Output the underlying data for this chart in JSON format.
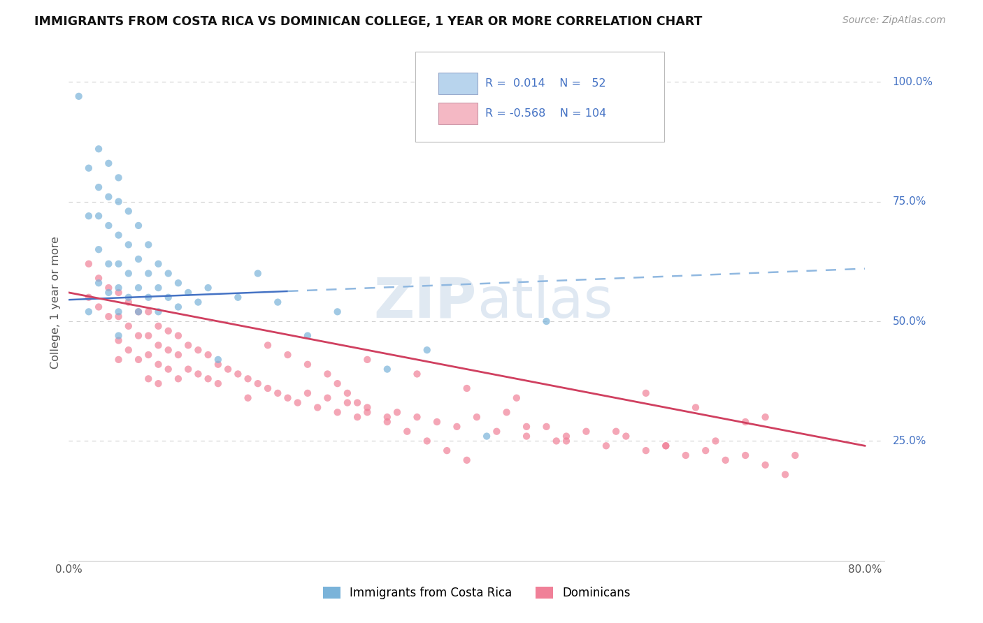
{
  "title": "IMMIGRANTS FROM COSTA RICA VS DOMINICAN COLLEGE, 1 YEAR OR MORE CORRELATION CHART",
  "source_text": "Source: ZipAtlas.com",
  "ylabel": "College, 1 year or more",
  "xlim": [
    0.0,
    0.82
  ],
  "ylim": [
    0.0,
    1.08
  ],
  "x_tick_labels": [
    "0.0%",
    "80.0%"
  ],
  "x_tick_positions": [
    0.0,
    0.8
  ],
  "y_tick_labels": [
    "25.0%",
    "50.0%",
    "75.0%",
    "100.0%"
  ],
  "y_tick_positions": [
    0.25,
    0.5,
    0.75,
    1.0
  ],
  "legend_label1": "Immigrants from Costa Rica",
  "legend_label2": "Dominicans",
  "blue_dot_color": "#7ab3d9",
  "blue_light_fill": "#b8d4ed",
  "pink_dot_color": "#f08098",
  "pink_light_fill": "#f4b8c4",
  "trendline_blue_solid": "#4472c4",
  "trendline_blue_dash": "#90b8e0",
  "trendline_pink": "#d04060",
  "text_color_blue": "#4472c4",
  "grid_color": "#d0d0d0",
  "watermark_color": "#dce8f0",
  "blue_scatter_x": [
    0.01,
    0.02,
    0.02,
    0.02,
    0.03,
    0.03,
    0.03,
    0.03,
    0.03,
    0.04,
    0.04,
    0.04,
    0.04,
    0.04,
    0.05,
    0.05,
    0.05,
    0.05,
    0.05,
    0.05,
    0.05,
    0.06,
    0.06,
    0.06,
    0.06,
    0.07,
    0.07,
    0.07,
    0.07,
    0.08,
    0.08,
    0.08,
    0.09,
    0.09,
    0.09,
    0.1,
    0.1,
    0.11,
    0.11,
    0.12,
    0.13,
    0.14,
    0.15,
    0.17,
    0.19,
    0.21,
    0.24,
    0.27,
    0.32,
    0.36,
    0.42,
    0.48
  ],
  "blue_scatter_y": [
    0.97,
    0.82,
    0.72,
    0.52,
    0.86,
    0.78,
    0.72,
    0.65,
    0.58,
    0.83,
    0.76,
    0.7,
    0.62,
    0.56,
    0.8,
    0.75,
    0.68,
    0.62,
    0.57,
    0.52,
    0.47,
    0.73,
    0.66,
    0.6,
    0.55,
    0.7,
    0.63,
    0.57,
    0.52,
    0.66,
    0.6,
    0.55,
    0.62,
    0.57,
    0.52,
    0.6,
    0.55,
    0.58,
    0.53,
    0.56,
    0.54,
    0.57,
    0.42,
    0.55,
    0.6,
    0.54,
    0.47,
    0.52,
    0.4,
    0.44,
    0.26,
    0.5
  ],
  "pink_scatter_x": [
    0.02,
    0.02,
    0.03,
    0.03,
    0.04,
    0.04,
    0.05,
    0.05,
    0.05,
    0.05,
    0.06,
    0.06,
    0.06,
    0.07,
    0.07,
    0.07,
    0.08,
    0.08,
    0.08,
    0.08,
    0.09,
    0.09,
    0.09,
    0.09,
    0.1,
    0.1,
    0.1,
    0.11,
    0.11,
    0.11,
    0.12,
    0.12,
    0.13,
    0.13,
    0.14,
    0.14,
    0.15,
    0.15,
    0.16,
    0.17,
    0.18,
    0.18,
    0.19,
    0.2,
    0.21,
    0.22,
    0.23,
    0.24,
    0.25,
    0.26,
    0.27,
    0.28,
    0.29,
    0.3,
    0.32,
    0.33,
    0.35,
    0.37,
    0.39,
    0.41,
    0.43,
    0.44,
    0.46,
    0.48,
    0.5,
    0.52,
    0.54,
    0.56,
    0.58,
    0.6,
    0.62,
    0.64,
    0.66,
    0.68,
    0.7,
    0.72,
    0.46,
    0.5,
    0.55,
    0.6,
    0.65,
    0.7,
    0.58,
    0.63,
    0.68,
    0.73,
    0.3,
    0.35,
    0.4,
    0.45,
    0.49,
    0.2,
    0.22,
    0.24,
    0.26,
    0.27,
    0.28,
    0.29,
    0.3,
    0.32,
    0.34,
    0.36,
    0.38,
    0.4
  ],
  "pink_scatter_y": [
    0.62,
    0.55,
    0.59,
    0.53,
    0.57,
    0.51,
    0.56,
    0.51,
    0.46,
    0.42,
    0.54,
    0.49,
    0.44,
    0.52,
    0.47,
    0.42,
    0.52,
    0.47,
    0.43,
    0.38,
    0.49,
    0.45,
    0.41,
    0.37,
    0.48,
    0.44,
    0.4,
    0.47,
    0.43,
    0.38,
    0.45,
    0.4,
    0.44,
    0.39,
    0.43,
    0.38,
    0.41,
    0.37,
    0.4,
    0.39,
    0.38,
    0.34,
    0.37,
    0.36,
    0.35,
    0.34,
    0.33,
    0.35,
    0.32,
    0.34,
    0.31,
    0.33,
    0.3,
    0.32,
    0.3,
    0.31,
    0.3,
    0.29,
    0.28,
    0.3,
    0.27,
    0.31,
    0.26,
    0.28,
    0.25,
    0.27,
    0.24,
    0.26,
    0.23,
    0.24,
    0.22,
    0.23,
    0.21,
    0.22,
    0.2,
    0.18,
    0.28,
    0.26,
    0.27,
    0.24,
    0.25,
    0.3,
    0.35,
    0.32,
    0.29,
    0.22,
    0.42,
    0.39,
    0.36,
    0.34,
    0.25,
    0.45,
    0.43,
    0.41,
    0.39,
    0.37,
    0.35,
    0.33,
    0.31,
    0.29,
    0.27,
    0.25,
    0.23,
    0.21
  ],
  "blue_trend_x0": 0.0,
  "blue_trend_y0": 0.545,
  "blue_trend_x1": 0.8,
  "blue_trend_y1": 0.61,
  "pink_trend_x0": 0.0,
  "pink_trend_y0": 0.56,
  "pink_trend_x1": 0.8,
  "pink_trend_y1": 0.24
}
